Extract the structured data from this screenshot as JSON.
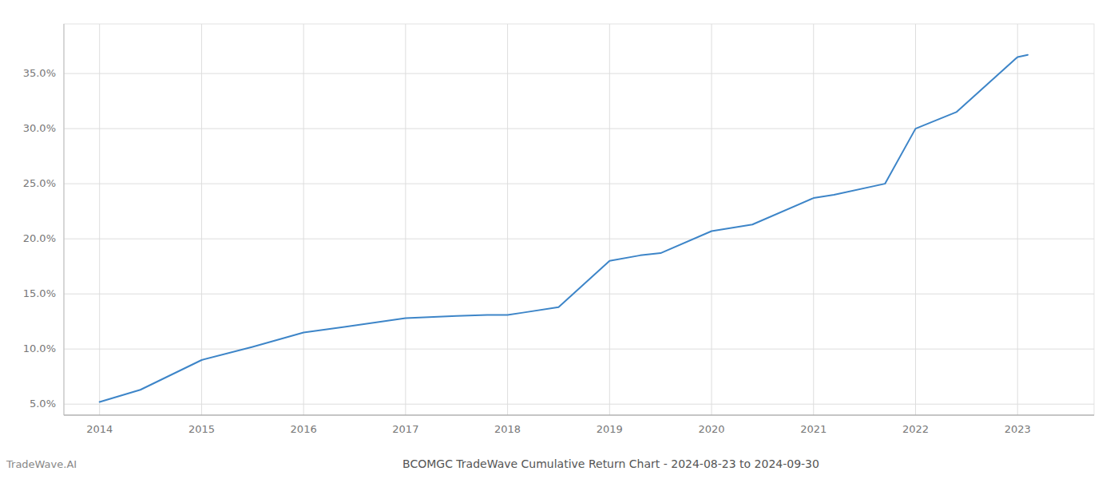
{
  "chart_data": {
    "type": "line",
    "title": "BCOMGC TradeWave Cumulative Return Chart - 2024-08-23 to 2024-09-30",
    "annotations": [
      "TradeWave.AI"
    ],
    "x": [
      2014.0,
      2014.4,
      2015.0,
      2015.5,
      2016.0,
      2016.4,
      2017.0,
      2017.5,
      2017.8,
      2018.0,
      2018.15,
      2018.5,
      2019.0,
      2019.3,
      2019.5,
      2020.0,
      2020.4,
      2021.0,
      2021.2,
      2021.7,
      2022.0,
      2022.4,
      2023.0,
      2023.1
    ],
    "values": [
      0.052,
      0.063,
      0.09,
      0.102,
      0.115,
      0.12,
      0.128,
      0.13,
      0.131,
      0.131,
      0.133,
      0.138,
      0.18,
      0.185,
      0.187,
      0.207,
      0.213,
      0.237,
      0.24,
      0.25,
      0.3,
      0.315,
      0.365,
      0.367
    ],
    "color": "#3d85c8",
    "xlim": [
      2013.65,
      2023.75
    ],
    "ylim": [
      0.04,
      0.395
    ],
    "xticks": [
      2014,
      2015,
      2016,
      2017,
      2018,
      2019,
      2020,
      2021,
      2022,
      2023
    ],
    "yticks": [
      {
        "value": 0.05,
        "label": "5.0%"
      },
      {
        "value": 0.1,
        "label": "10.0%"
      },
      {
        "value": 0.15,
        "label": "15.0%"
      },
      {
        "value": 0.2,
        "label": "20.0%"
      },
      {
        "value": 0.25,
        "label": "25.0%"
      },
      {
        "value": 0.3,
        "label": "30.0%"
      },
      {
        "value": 0.35,
        "label": "35.0%"
      }
    ],
    "grid": true
  }
}
